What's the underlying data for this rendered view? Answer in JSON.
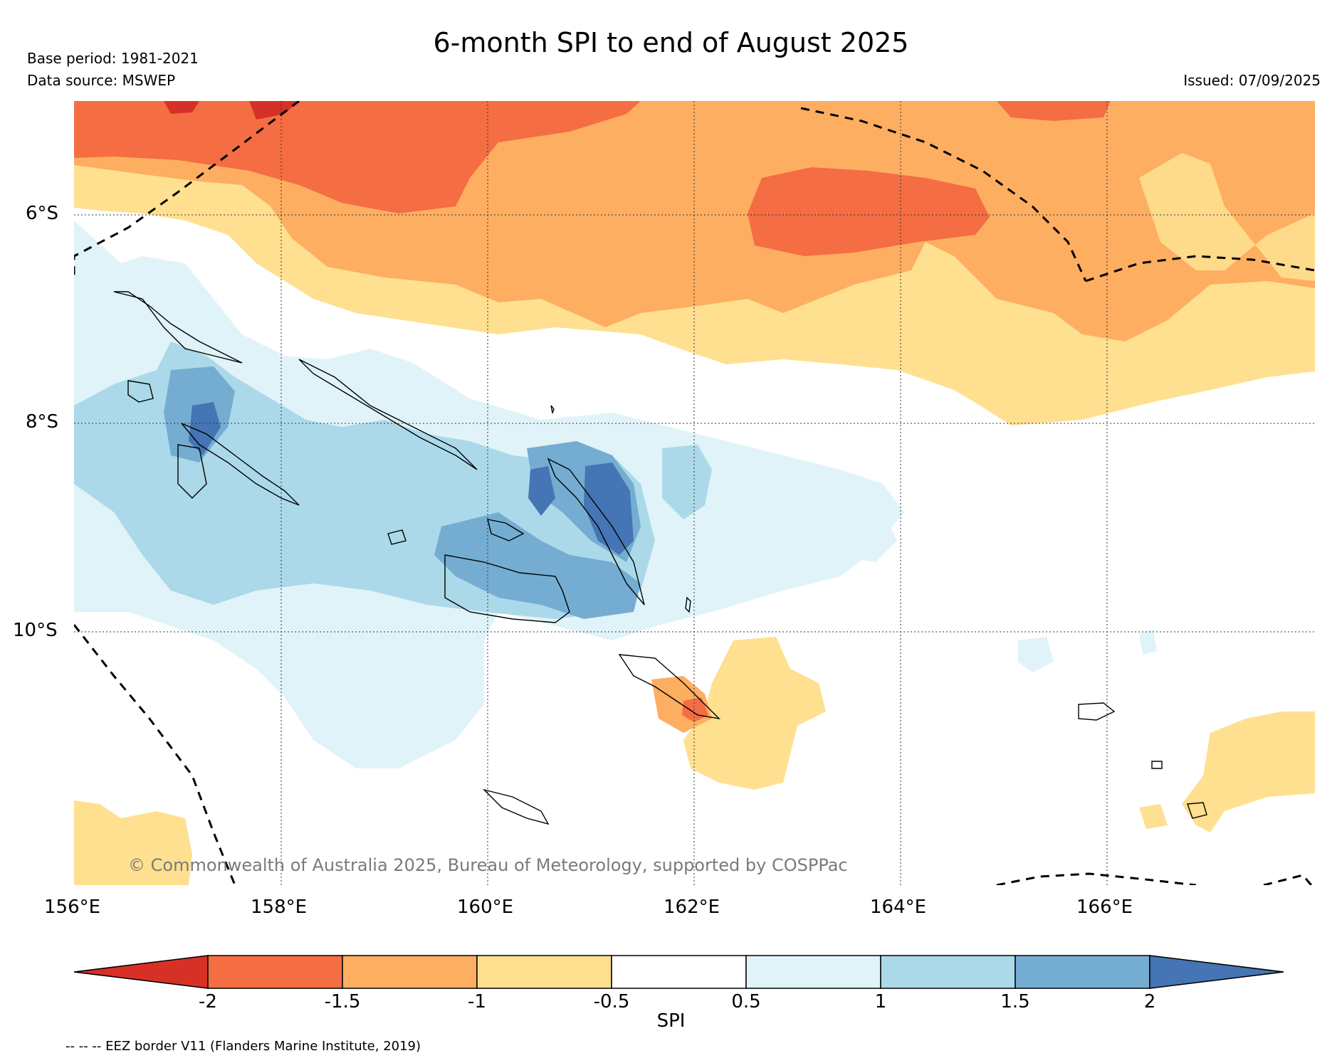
{
  "title": "6-month SPI to end of August 2025",
  "base_period": "Base period: 1981-2021",
  "data_source": "Data source: MSWEP",
  "issued": "Issued: 07/09/2025",
  "lat_labels": [
    "6°S",
    "8°S",
    "10°S"
  ],
  "lon_labels": [
    "156°E",
    "158°E",
    "160°E",
    "162°E",
    "164°E",
    "166°E"
  ],
  "copyright": "© Commonwealth of Australia 2025, Bureau of Meteorology, supported by COSPPac",
  "colorbar": {
    "label": "SPI",
    "ticks": [
      "-2",
      "-1.5",
      "-1",
      "-0.5",
      "0.5",
      "1",
      "1.5",
      "2"
    ],
    "colors": {
      "lt_-2": "#d73027",
      "-2_-1.5": "#f46d43",
      "-1.5_-1": "#fdae61",
      "-1_-0.5": "#fee090",
      "-0.5_0.5": "#ffffff",
      "0.5_1": "#e0f3f8",
      "1_1.5": "#abd9e9",
      "1.5_2": "#74add1",
      "gt_2": "#4575b4"
    }
  },
  "legend_note": "-- -- -- EEZ border V11 (Flanders Marine Institute, 2019)"
}
